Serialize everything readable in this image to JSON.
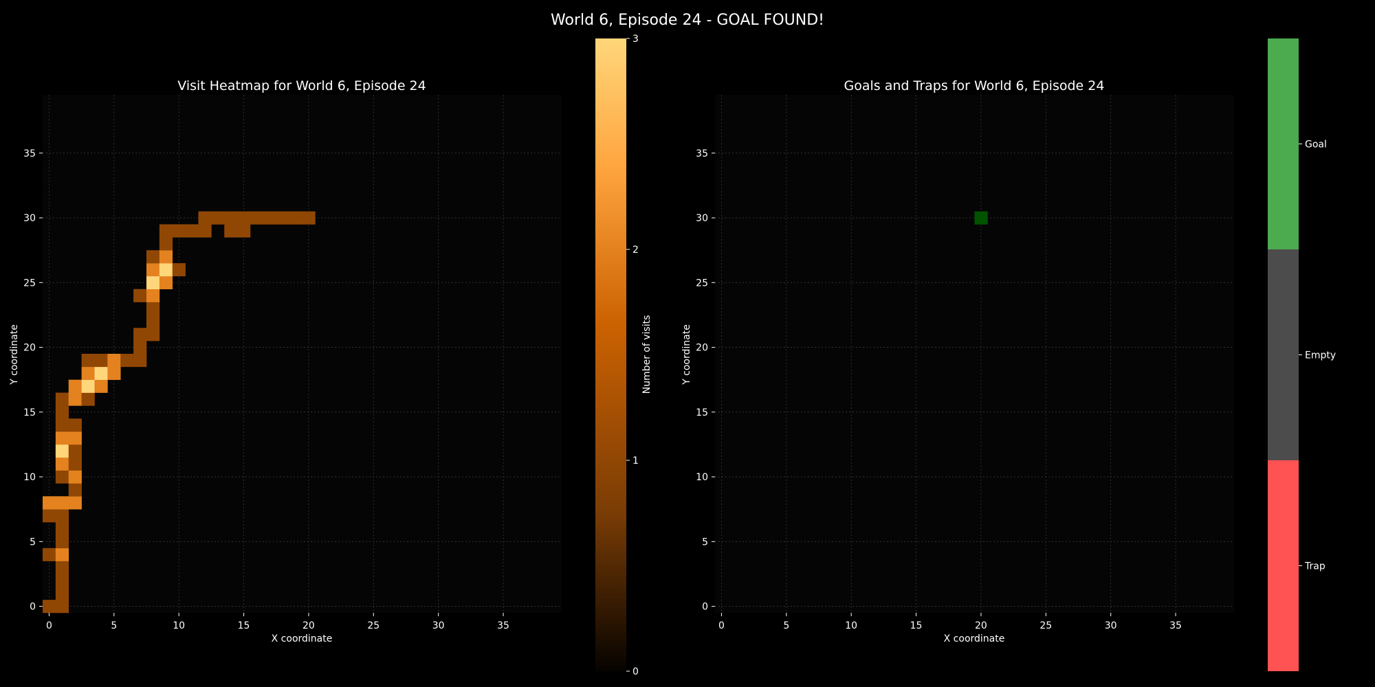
{
  "page_title": "World 6, Episode 24 - GOAL FOUND!",
  "colors": {
    "background": "#000000",
    "plot_background": "#050505",
    "grid": "#3a3a3a",
    "visit_cmap": [
      "#060300",
      "#7a3c05",
      "#cc6202",
      "#ffa640",
      "#ffd67a"
    ],
    "goal": "#4caa4f",
    "empty": "#4c4c4c",
    "trap": "#ff5252",
    "goal_cell": "#005400"
  },
  "chart_data": [
    {
      "type": "heatmap",
      "title": "Visit Heatmap for World 6, Episode 24",
      "xlabel": "X coordinate",
      "ylabel": "Y coordinate",
      "xlim": [
        -0.5,
        39.5
      ],
      "ylim": [
        -0.5,
        39.5
      ],
      "xticks": [
        0,
        5,
        10,
        15,
        20,
        25,
        30,
        35
      ],
      "yticks": [
        0,
        5,
        10,
        15,
        20,
        25,
        30,
        35
      ],
      "grid": true,
      "colorbar": {
        "label": "Number of visits",
        "min": 0,
        "max": 3,
        "ticks": [
          0,
          1,
          2,
          3
        ]
      },
      "cells": [
        {
          "x": 0,
          "y": 0,
          "v": 1
        },
        {
          "x": 1,
          "y": 0,
          "v": 1
        },
        {
          "x": 1,
          "y": 1,
          "v": 1
        },
        {
          "x": 1,
          "y": 2,
          "v": 1
        },
        {
          "x": 1,
          "y": 3,
          "v": 1
        },
        {
          "x": 0,
          "y": 4,
          "v": 1
        },
        {
          "x": 1,
          "y": 4,
          "v": 2
        },
        {
          "x": 1,
          "y": 5,
          "v": 1
        },
        {
          "x": 1,
          "y": 6,
          "v": 1
        },
        {
          "x": 0,
          "y": 7,
          "v": 1
        },
        {
          "x": 1,
          "y": 7,
          "v": 1
        },
        {
          "x": 0,
          "y": 8,
          "v": 2
        },
        {
          "x": 1,
          "y": 8,
          "v": 2
        },
        {
          "x": 2,
          "y": 8,
          "v": 2
        },
        {
          "x": 2,
          "y": 9,
          "v": 1
        },
        {
          "x": 1,
          "y": 10,
          "v": 1
        },
        {
          "x": 2,
          "y": 10,
          "v": 2
        },
        {
          "x": 1,
          "y": 11,
          "v": 2
        },
        {
          "x": 2,
          "y": 11,
          "v": 1
        },
        {
          "x": 1,
          "y": 12,
          "v": 3
        },
        {
          "x": 2,
          "y": 12,
          "v": 1
        },
        {
          "x": 1,
          "y": 13,
          "v": 2
        },
        {
          "x": 2,
          "y": 13,
          "v": 2
        },
        {
          "x": 1,
          "y": 14,
          "v": 1
        },
        {
          "x": 2,
          "y": 14,
          "v": 1
        },
        {
          "x": 1,
          "y": 15,
          "v": 1
        },
        {
          "x": 1,
          "y": 16,
          "v": 1
        },
        {
          "x": 2,
          "y": 16,
          "v": 2
        },
        {
          "x": 3,
          "y": 16,
          "v": 1
        },
        {
          "x": 2,
          "y": 17,
          "v": 2
        },
        {
          "x": 3,
          "y": 17,
          "v": 3
        },
        {
          "x": 4,
          "y": 17,
          "v": 2
        },
        {
          "x": 3,
          "y": 18,
          "v": 2
        },
        {
          "x": 4,
          "y": 18,
          "v": 3
        },
        {
          "x": 5,
          "y": 18,
          "v": 2
        },
        {
          "x": 3,
          "y": 19,
          "v": 1
        },
        {
          "x": 4,
          "y": 19,
          "v": 1
        },
        {
          "x": 5,
          "y": 19,
          "v": 2
        },
        {
          "x": 6,
          "y": 19,
          "v": 1
        },
        {
          "x": 7,
          "y": 19,
          "v": 1
        },
        {
          "x": 7,
          "y": 20,
          "v": 1
        },
        {
          "x": 7,
          "y": 21,
          "v": 1
        },
        {
          "x": 8,
          "y": 21,
          "v": 1
        },
        {
          "x": 8,
          "y": 22,
          "v": 1
        },
        {
          "x": 8,
          "y": 23,
          "v": 1
        },
        {
          "x": 7,
          "y": 24,
          "v": 1
        },
        {
          "x": 8,
          "y": 24,
          "v": 2
        },
        {
          "x": 8,
          "y": 25,
          "v": 3
        },
        {
          "x": 9,
          "y": 25,
          "v": 2
        },
        {
          "x": 8,
          "y": 26,
          "v": 2
        },
        {
          "x": 9,
          "y": 26,
          "v": 3
        },
        {
          "x": 10,
          "y": 26,
          "v": 1
        },
        {
          "x": 8,
          "y": 27,
          "v": 1
        },
        {
          "x": 9,
          "y": 27,
          "v": 2
        },
        {
          "x": 9,
          "y": 28,
          "v": 1
        },
        {
          "x": 9,
          "y": 29,
          "v": 1
        },
        {
          "x": 10,
          "y": 29,
          "v": 1
        },
        {
          "x": 11,
          "y": 29,
          "v": 1
        },
        {
          "x": 12,
          "y": 29,
          "v": 1
        },
        {
          "x": 14,
          "y": 29,
          "v": 1
        },
        {
          "x": 15,
          "y": 29,
          "v": 1
        },
        {
          "x": 12,
          "y": 30,
          "v": 1
        },
        {
          "x": 13,
          "y": 30,
          "v": 1
        },
        {
          "x": 14,
          "y": 30,
          "v": 1
        },
        {
          "x": 15,
          "y": 30,
          "v": 1
        },
        {
          "x": 16,
          "y": 30,
          "v": 1
        },
        {
          "x": 17,
          "y": 30,
          "v": 1
        },
        {
          "x": 18,
          "y": 30,
          "v": 1
        },
        {
          "x": 19,
          "y": 30,
          "v": 1
        },
        {
          "x": 20,
          "y": 30,
          "v": 1
        }
      ]
    },
    {
      "type": "heatmap",
      "title": "Goals and Traps for World 6, Episode 24",
      "xlabel": "X coordinate",
      "ylabel": "Y coordinate",
      "xlim": [
        -0.5,
        39.5
      ],
      "ylim": [
        -0.5,
        39.5
      ],
      "xticks": [
        0,
        5,
        10,
        15,
        20,
        25,
        30,
        35
      ],
      "yticks": [
        0,
        5,
        10,
        15,
        20,
        25,
        30,
        35
      ],
      "grid": true,
      "colorbar": {
        "categories": [
          "Trap",
          "Empty",
          "Goal"
        ]
      },
      "cells": [
        {
          "x": 20,
          "y": 30,
          "category": "Goal"
        }
      ]
    }
  ]
}
